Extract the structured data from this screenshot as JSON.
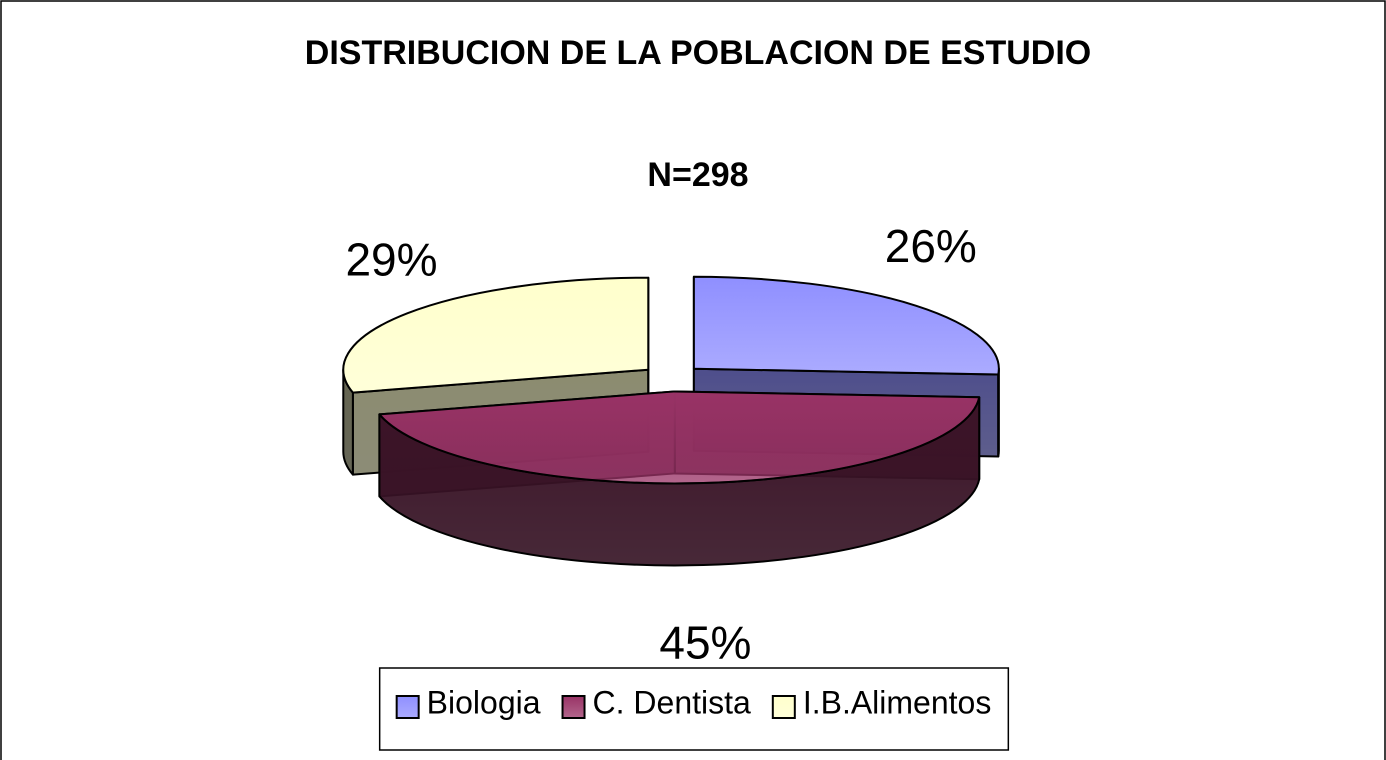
{
  "chart_data": {
    "type": "pie3d",
    "title": "DISTRIBUCION DE LA POBLACION DE ESTUDIO",
    "subtitle": "N=298",
    "categories": [
      "Biologia",
      "C. Dentista",
      "I.B.Alimentos"
    ],
    "values": [
      26,
      45,
      29
    ],
    "value_labels": [
      "26%",
      "45%",
      "29%"
    ],
    "colors": [
      "#8f8fff",
      "#993366",
      "#ffffcc"
    ],
    "legend": "bottom"
  }
}
